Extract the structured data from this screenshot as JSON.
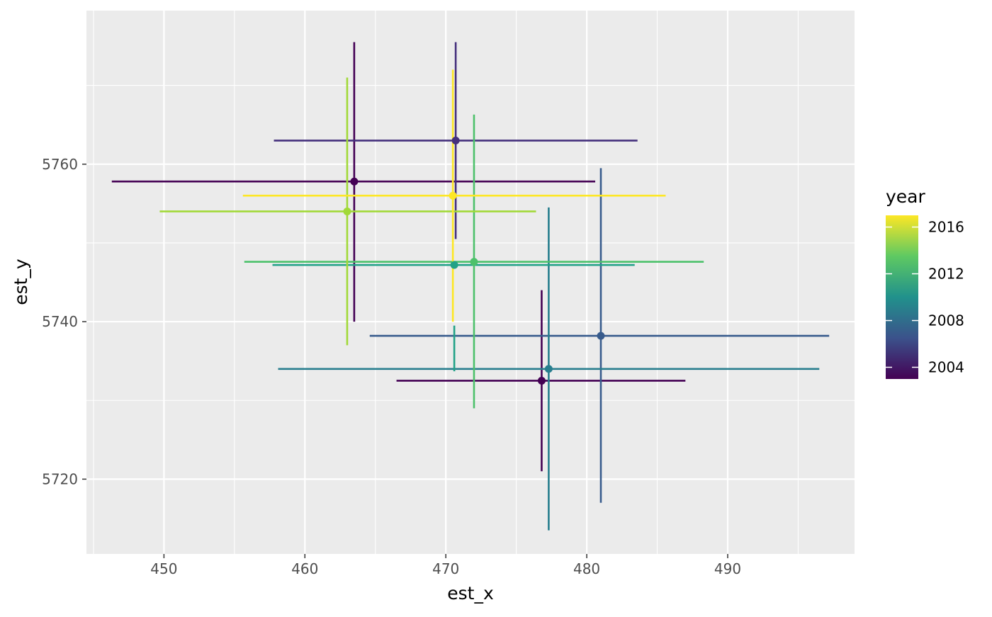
{
  "chart_data": {
    "type": "scatter",
    "subtype": "point with crossing error bars",
    "title": "",
    "xlabel": "est_x",
    "ylabel": "est_y",
    "xlim": [
      444.5,
      499.0
    ],
    "ylim": [
      5710.5,
      5779.5
    ],
    "x_ticks": [
      450,
      460,
      470,
      480,
      490
    ],
    "y_ticks": [
      5720,
      5740,
      5760
    ],
    "grid": true,
    "color_by": "year",
    "colormap": "viridis",
    "legend": {
      "title": "year",
      "position": "right",
      "range": [
        2003,
        2017
      ],
      "ticks": [
        2004,
        2008,
        2012,
        2016
      ]
    },
    "points": [
      {
        "year": 2003,
        "x": 463.5,
        "y": 5757.8,
        "x_err": [
          446.3,
          480.6
        ],
        "y_err": [
          5740.0,
          5775.5
        ]
      },
      {
        "year": 2003,
        "x": 476.8,
        "y": 5732.5,
        "x_err": [
          466.5,
          487.0
        ],
        "y_err": [
          5721.0,
          5744.0
        ]
      },
      {
        "year": 2005,
        "x": 470.7,
        "y": 5763.0,
        "x_err": [
          457.8,
          483.6
        ],
        "y_err": [
          5750.5,
          5775.5
        ]
      },
      {
        "year": 2007,
        "x": 481.0,
        "y": 5738.2,
        "x_err": [
          464.6,
          497.2
        ],
        "y_err": [
          5717.0,
          5759.5
        ]
      },
      {
        "year": 2009,
        "x": 477.3,
        "y": 5734.0,
        "x_err": [
          458.1,
          496.5
        ],
        "y_err": [
          5713.5,
          5754.5
        ]
      },
      {
        "year": 2011,
        "x": 470.6,
        "y": 5747.2,
        "x_err": [
          457.7,
          483.4
        ],
        "y_err": [
          5733.7,
          5739.5
        ]
      },
      {
        "year": 2013,
        "x": 472.0,
        "y": 5747.6,
        "x_err": [
          455.7,
          488.3
        ],
        "y_err": [
          5729.0,
          5766.3
        ]
      },
      {
        "year": 2015,
        "x": 463.0,
        "y": 5754.0,
        "x_err": [
          449.7,
          476.4
        ],
        "y_err": [
          5737.0,
          5771.0
        ]
      },
      {
        "year": 2017,
        "x": 470.5,
        "y": 5756.0,
        "x_err": [
          455.6,
          485.6
        ],
        "y_err": [
          5740.0,
          5772.0
        ]
      }
    ]
  }
}
